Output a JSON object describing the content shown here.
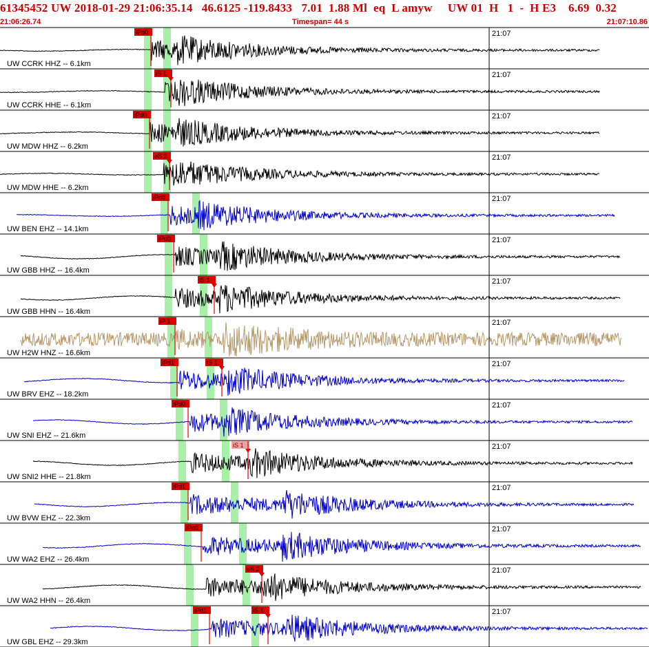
{
  "header": {
    "title": "61345452 UW 2018-01-29 21:06:35.14   46.6125 -119.8433   7.01  1.88 Ml  eq  L amyw     UW 01  H   1  -  H E3    6.69  0.32",
    "start_time": "21:06:26.74",
    "timespan": "Timespan=  44 s",
    "end_time": "21:07:10.86"
  },
  "colors": {
    "header": "#d00000",
    "black": "#000000",
    "blue": "#0000cc",
    "tan": "#b59868",
    "pick_red": "#e00000",
    "pick_pink": "#f4a0a0",
    "green_band": "#a8f0a8",
    "grid": "#000000"
  },
  "minute_label": "21:07",
  "traces": [
    {
      "label": "UW CCRK HHZ -- 6.1km",
      "color": "black",
      "picks": [
        {
          "text": "iPd0"
        }
      ],
      "arrival": "P"
    },
    {
      "label": "UW CCRK HHE -- 6.1km",
      "color": "black",
      "picks": [
        {
          "text": "iS 1"
        }
      ],
      "arrival": "S"
    },
    {
      "label": "UW MDW HHZ -- 6.2km",
      "color": "black",
      "picks": [
        {
          "text": "iPd0"
        }
      ],
      "arrival": "P"
    },
    {
      "label": "UW MDW HHE -- 6.2km",
      "color": "black",
      "picks": [
        {
          "text": "eS 2"
        }
      ],
      "arrival": "S"
    },
    {
      "label": "UW BEN EHZ -- 14.1km",
      "color": "blue",
      "picks": [
        {
          "text": "iPd0"
        }
      ],
      "arrival": "P"
    },
    {
      "label": "UW GBB HHZ -- 16.4km",
      "color": "black",
      "picks": [
        {
          "text": "iPd0"
        }
      ],
      "arrival": "P"
    },
    {
      "label": "UW GBB HHN -- 16.4km",
      "color": "black",
      "picks": [
        {
          "text": "iS 1"
        }
      ],
      "arrival": "S"
    },
    {
      "label": "UW H2W HNZ -- 16.6km",
      "color": "tan",
      "picks": [
        {
          "text": "iP 1"
        }
      ],
      "arrival": "P"
    },
    {
      "label": "UW BRV EHZ -- 18.2km",
      "color": "blue",
      "picks": [
        {
          "text": "iPd1"
        },
        {
          "text": "iS 1"
        }
      ],
      "arrival": "P"
    },
    {
      "label": "UW SNI EHZ -- 21.6km",
      "color": "blue",
      "picks": [
        {
          "text": "iPd0"
        }
      ],
      "arrival": "P"
    },
    {
      "label": "UW SNI2 HHE -- 21.8km",
      "color": "black",
      "picks": [
        {
          "text": "iS 1"
        }
      ],
      "arrival": "S"
    },
    {
      "label": "UW BVW EHZ -- 22.3km",
      "color": "blue",
      "picks": [
        {
          "text": "iPd1"
        }
      ],
      "arrival": "P"
    },
    {
      "label": "UW WA2 EHZ -- 26.4km",
      "color": "blue",
      "picks": [
        {
          "text": "iPd0"
        }
      ],
      "arrival": "P"
    },
    {
      "label": "UW WA2 HHN -- 26.4km",
      "color": "black",
      "picks": [
        {
          "text": "eS 2"
        }
      ],
      "arrival": "S"
    },
    {
      "label": "UW GBL EHZ -- 29.3km",
      "color": "blue",
      "picks": [
        {
          "text": "iPd1"
        },
        {
          "text": "iS 1"
        }
      ],
      "arrival": "P"
    }
  ]
}
